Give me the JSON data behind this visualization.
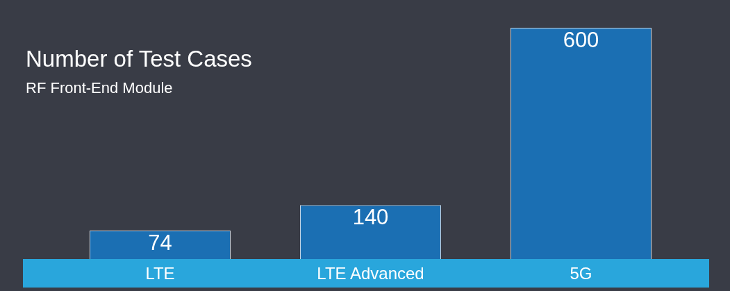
{
  "chart_data": {
    "type": "bar",
    "title": "Number of Test Cases",
    "subtitle": "RF Front-End Module",
    "categories": [
      "LTE",
      "LTE Advanced",
      "5G"
    ],
    "values": [
      74,
      140,
      600
    ],
    "color": "#1b6fb3",
    "ylim": [
      0,
      600
    ],
    "data_labels": true
  }
}
